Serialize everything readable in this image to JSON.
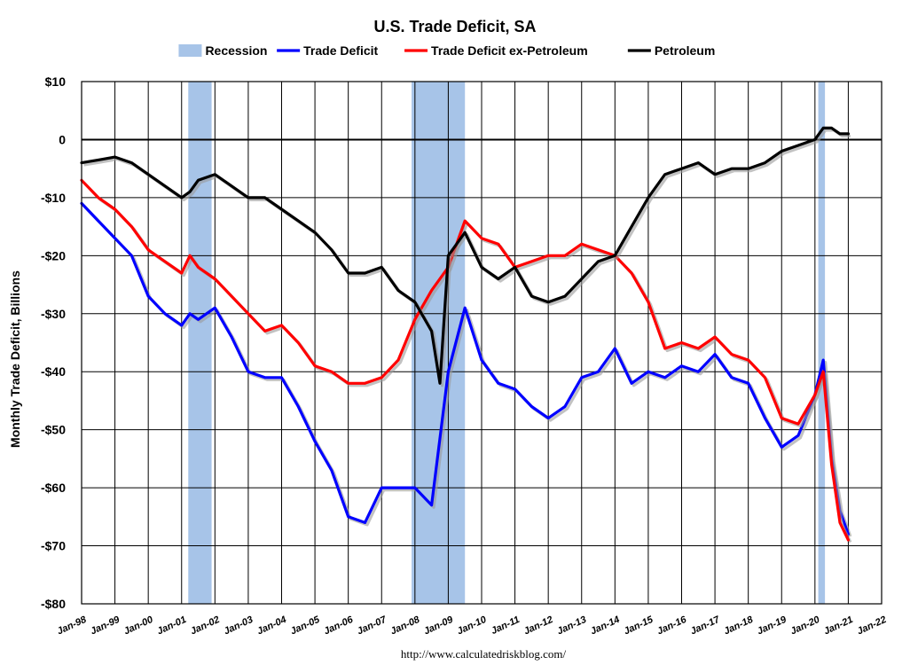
{
  "chart_data": {
    "type": "line",
    "title": "U.S. Trade Deficit, SA",
    "ylabel": "Monthly Trade Deficit, Billions",
    "xlabel": "",
    "source": "http://www.calculatedriskblog.com/",
    "ylim": [
      -80,
      10
    ],
    "y_ticks": [
      10,
      0,
      -10,
      -20,
      -30,
      -40,
      -50,
      -60,
      -70,
      -80
    ],
    "y_tick_labels": [
      "$10",
      "0",
      "-$10",
      "-$20",
      "-$30",
      "-$40",
      "-$50",
      "-$60",
      "-$70",
      "-$80"
    ],
    "xlim": [
      1998.0,
      2022.0
    ],
    "x_tick_labels": [
      "Jan-98",
      "Jan-99",
      "Jan-00",
      "Jan-01",
      "Jan-02",
      "Jan-03",
      "Jan-04",
      "Jan-05",
      "Jan-06",
      "Jan-07",
      "Jan-08",
      "Jan-09",
      "Jan-10",
      "Jan-11",
      "Jan-12",
      "Jan-13",
      "Jan-14",
      "Jan-15",
      "Jan-16",
      "Jan-17",
      "Jan-18",
      "Jan-19",
      "Jan-20",
      "Jan-21",
      "Jan-22"
    ],
    "legend_position": "top-center",
    "recessions": [
      {
        "start": 2001.2,
        "end": 2001.9
      },
      {
        "start": 2007.9,
        "end": 2009.5
      },
      {
        "start": 2020.1,
        "end": 2020.3
      }
    ],
    "series": [
      {
        "name": "Recession",
        "kind": "band"
      },
      {
        "name": "Trade Deficit",
        "x": [
          1998.0,
          1998.5,
          1999.0,
          1999.5,
          2000.0,
          2000.5,
          2001.0,
          2001.25,
          2001.5,
          2002.0,
          2002.5,
          2003.0,
          2003.5,
          2004.0,
          2004.5,
          2005.0,
          2005.5,
          2006.0,
          2006.5,
          2007.0,
          2007.5,
          2008.0,
          2008.5,
          2009.0,
          2009.5,
          2010.0,
          2010.5,
          2011.0,
          2011.5,
          2012.0,
          2012.5,
          2013.0,
          2013.5,
          2014.0,
          2014.5,
          2015.0,
          2015.5,
          2016.0,
          2016.5,
          2017.0,
          2017.5,
          2018.0,
          2018.5,
          2019.0,
          2019.5,
          2020.0,
          2020.25,
          2020.5,
          2020.75,
          2021.0
        ],
        "values": [
          -11,
          -14,
          -17,
          -20,
          -27,
          -30,
          -32,
          -30,
          -31,
          -29,
          -34,
          -40,
          -41,
          -41,
          -46,
          -52,
          -57,
          -65,
          -66,
          -60,
          -60,
          -60,
          -63,
          -40,
          -29,
          -38,
          -42,
          -43,
          -46,
          -48,
          -46,
          -41,
          -40,
          -36,
          -42,
          -40,
          -41,
          -39,
          -40,
          -37,
          -41,
          -42,
          -48,
          -53,
          -51,
          -44,
          -38,
          -55,
          -64,
          -68
        ]
      },
      {
        "name": "Trade Deficit ex-Petroleum",
        "x": [
          1998.0,
          1998.5,
          1999.0,
          1999.5,
          2000.0,
          2000.5,
          2001.0,
          2001.25,
          2001.5,
          2002.0,
          2002.5,
          2003.0,
          2003.5,
          2004.0,
          2004.5,
          2005.0,
          2005.5,
          2006.0,
          2006.5,
          2007.0,
          2007.5,
          2008.0,
          2008.5,
          2009.0,
          2009.5,
          2010.0,
          2010.5,
          2011.0,
          2011.5,
          2012.0,
          2012.5,
          2013.0,
          2013.5,
          2014.0,
          2014.5,
          2015.0,
          2015.5,
          2016.0,
          2016.5,
          2017.0,
          2017.5,
          2018.0,
          2018.5,
          2019.0,
          2019.5,
          2020.0,
          2020.25,
          2020.5,
          2020.75,
          2021.0
        ],
        "values": [
          -7,
          -10,
          -12,
          -15,
          -19,
          -21,
          -23,
          -20,
          -22,
          -24,
          -27,
          -30,
          -33,
          -32,
          -35,
          -39,
          -40,
          -42,
          -42,
          -41,
          -38,
          -31,
          -26,
          -22,
          -14,
          -17,
          -18,
          -22,
          -21,
          -20,
          -20,
          -18,
          -19,
          -20,
          -23,
          -28,
          -36,
          -35,
          -36,
          -34,
          -37,
          -38,
          -41,
          -48,
          -49,
          -44,
          -40,
          -56,
          -66,
          -69
        ]
      },
      {
        "name": "Petroleum",
        "x": [
          1998.0,
          1998.5,
          1999.0,
          1999.5,
          2000.0,
          2000.5,
          2001.0,
          2001.25,
          2001.5,
          2002.0,
          2002.5,
          2003.0,
          2003.5,
          2004.0,
          2004.5,
          2005.0,
          2005.5,
          2006.0,
          2006.5,
          2007.0,
          2007.5,
          2008.0,
          2008.5,
          2008.75,
          2009.0,
          2009.5,
          2010.0,
          2010.5,
          2011.0,
          2011.5,
          2012.0,
          2012.5,
          2013.0,
          2013.5,
          2014.0,
          2014.5,
          2015.0,
          2015.5,
          2016.0,
          2016.5,
          2017.0,
          2017.5,
          2018.0,
          2018.5,
          2019.0,
          2019.5,
          2020.0,
          2020.25,
          2020.5,
          2020.75,
          2021.0
        ],
        "values": [
          -4,
          -3.5,
          -3,
          -4,
          -6,
          -8,
          -10,
          -9,
          -7,
          -6,
          -8,
          -10,
          -10,
          -12,
          -14,
          -16,
          -19,
          -23,
          -23,
          -22,
          -26,
          -28,
          -33,
          -42,
          -20,
          -16,
          -22,
          -24,
          -22,
          -27,
          -28,
          -27,
          -24,
          -21,
          -20,
          -15,
          -10,
          -6,
          -5,
          -4,
          -6,
          -5,
          -5,
          -4,
          -2,
          -1,
          0,
          2,
          2,
          1,
          1
        ]
      }
    ],
    "colors": {
      "Recession": "#a7c4e8",
      "Trade Deficit": "#0000ff",
      "Trade Deficit ex-Petroleum": "#ff0000",
      "Petroleum": "#000000"
    }
  }
}
